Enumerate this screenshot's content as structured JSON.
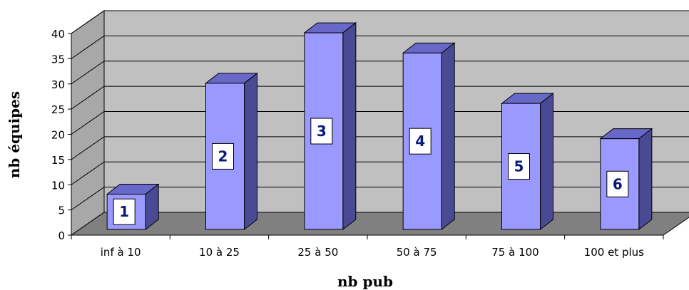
{
  "chart_data": {
    "type": "bar",
    "title": "",
    "xlabel": "nb pub",
    "ylabel": "nb équipes",
    "categories": [
      "inf à 10",
      "10 à 25",
      "25 à 50",
      "50 à 75",
      "75 à 100",
      "100 et plus"
    ],
    "values": [
      7,
      29,
      39,
      35,
      25,
      18
    ],
    "data_labels": [
      "1",
      "2",
      "3",
      "4",
      "5",
      "6"
    ],
    "ylim": [
      0,
      40
    ],
    "yticks": [
      "0",
      "5",
      "10",
      "15",
      "20",
      "25",
      "30",
      "35",
      "40"
    ],
    "grid": true,
    "legend": "none",
    "colors": {
      "bar_front": "#9999ff",
      "bar_side": "#4a4a94",
      "bar_top": "#6868c8",
      "back_wall": "#c0c0c0",
      "side_wall": "#a8a8a8",
      "floor": "#808080",
      "label_text": "#0a1a7a"
    }
  }
}
